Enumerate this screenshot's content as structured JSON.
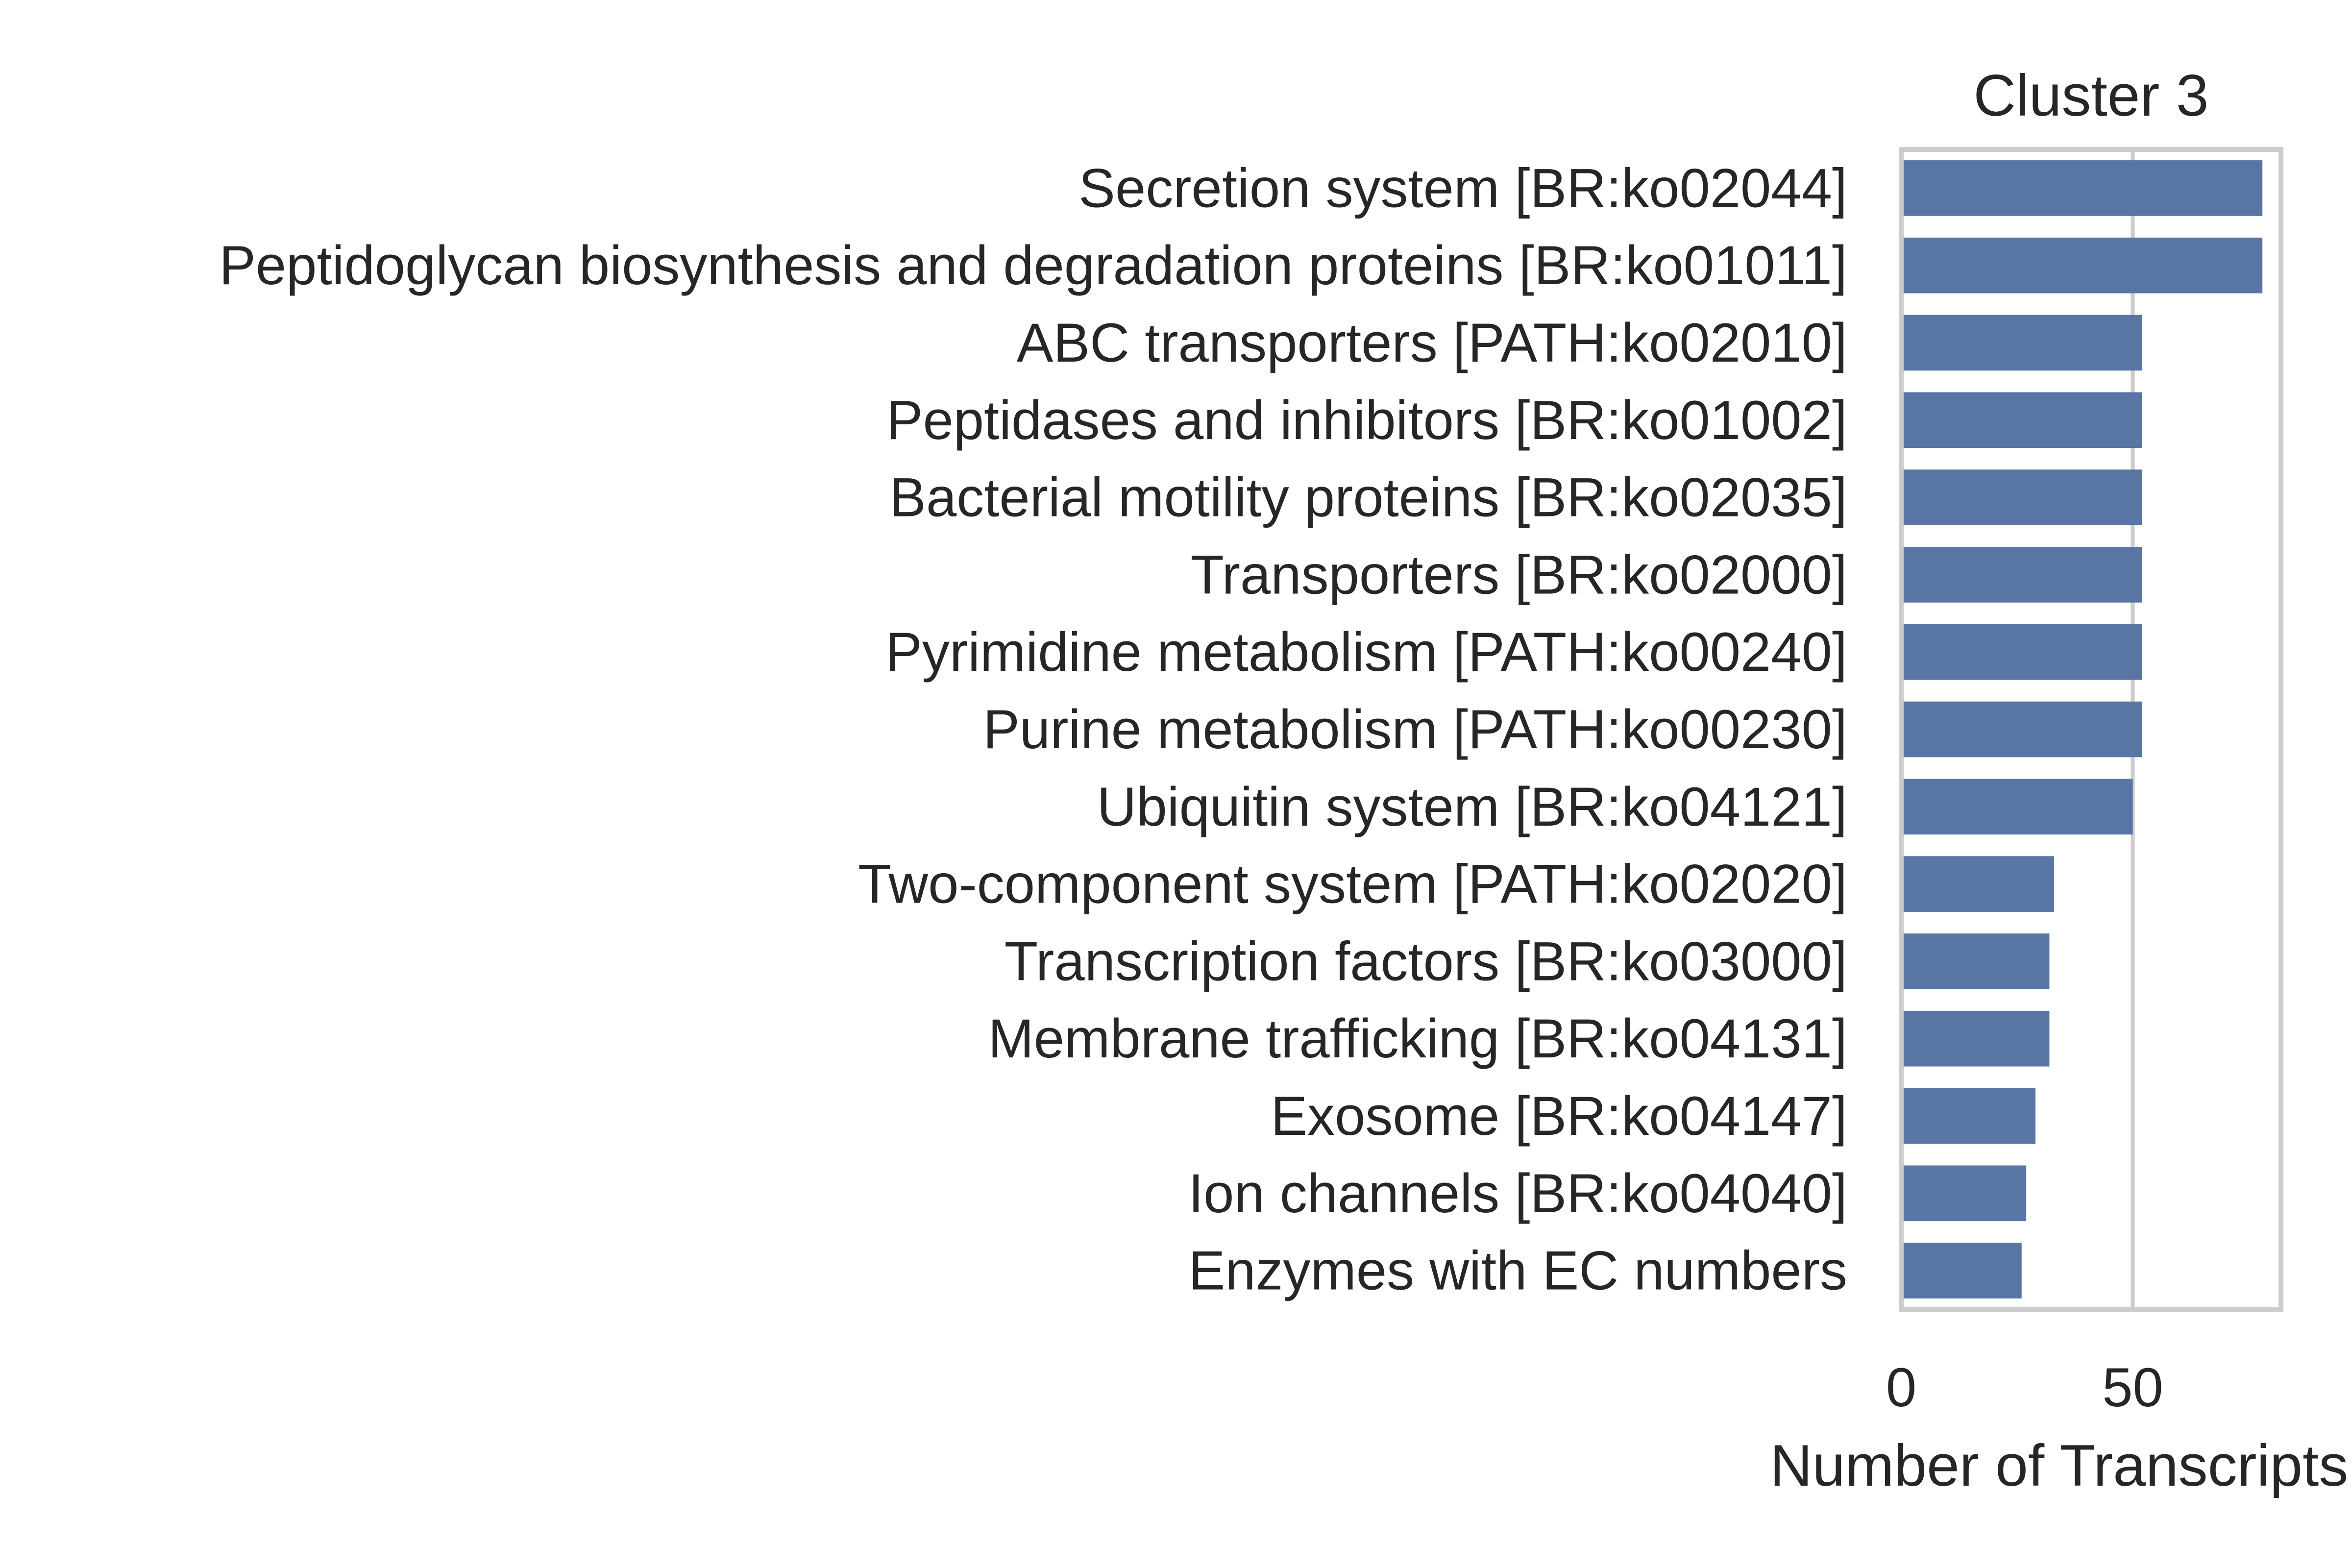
{
  "chart_data": {
    "type": "bar",
    "orientation": "horizontal",
    "title": "Cluster 3",
    "xlabel": "Number of Transcripts",
    "ylabel": "",
    "xlim": [
      0,
      82
    ],
    "xticks": [
      0,
      50
    ],
    "grid": true,
    "bar_color": "#5875a4",
    "grid_color": "#cccccc",
    "frame_color": "#cccccc",
    "text_color": "#262626",
    "categories": [
      "Secretion system [BR:ko02044]",
      "Peptidoglycan biosynthesis and degradation proteins [BR:ko01011]",
      "ABC transporters [PATH:ko02010]",
      "Peptidases and inhibitors [BR:ko01002]",
      "Bacterial motility proteins [BR:ko02035]",
      "Transporters [BR:ko02000]",
      "Pyrimidine metabolism [PATH:ko00240]",
      "Purine metabolism [PATH:ko00230]",
      "Ubiquitin system [BR:ko04121]",
      "Two-component system [PATH:ko02020]",
      "Transcription factors [BR:ko03000]",
      "Membrane trafficking [BR:ko04131]",
      "Exosome [BR:ko04147]",
      "Ion channels [BR:ko04040]",
      "Enzymes with EC numbers"
    ],
    "values": [
      78,
      78,
      52,
      52,
      52,
      52,
      52,
      52,
      50,
      33,
      32,
      32,
      29,
      27,
      26
    ]
  }
}
